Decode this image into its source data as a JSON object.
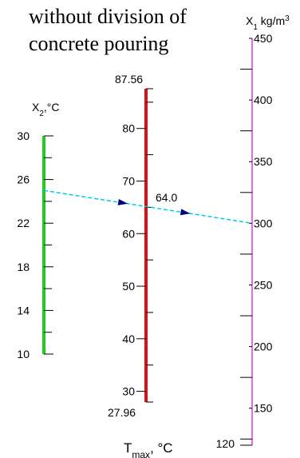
{
  "chart_data": {
    "type": "nomogram",
    "title": [
      "without division of",
      "concrete pouring"
    ],
    "colors": {
      "x2_axis": "#22cc22",
      "tmax_axis": "#dd1111",
      "x1_axis": "#ee66ee",
      "isopleth": "#00ccee",
      "arrow": "#000080"
    },
    "x2_axis": {
      "label_main": "X",
      "label_sub": "2",
      "label_unit": ",°C",
      "range": [
        10,
        30
      ],
      "labels": [
        "10",
        "14",
        "18",
        "22",
        "26",
        "30"
      ]
    },
    "tmax_axis": {
      "label_main": "T",
      "label_sub": "max",
      "label_unit": ", °C",
      "range": [
        27.96,
        87.56
      ],
      "end_labels": [
        "87.56",
        "27.96"
      ],
      "labels": [
        "30",
        "40",
        "50",
        "60",
        "70",
        "80"
      ]
    },
    "x1_axis": {
      "label_main": "X",
      "label_sub": "1",
      "label_unit": " kg/m",
      "label_sup": "3",
      "range": [
        120,
        450
      ],
      "labels": [
        "120",
        "150",
        "200",
        "250",
        "300",
        "350",
        "400",
        "450"
      ]
    },
    "isopleth": {
      "x2": 25,
      "x1": 300,
      "tmax": 64.0,
      "result_label": "64.0"
    }
  }
}
